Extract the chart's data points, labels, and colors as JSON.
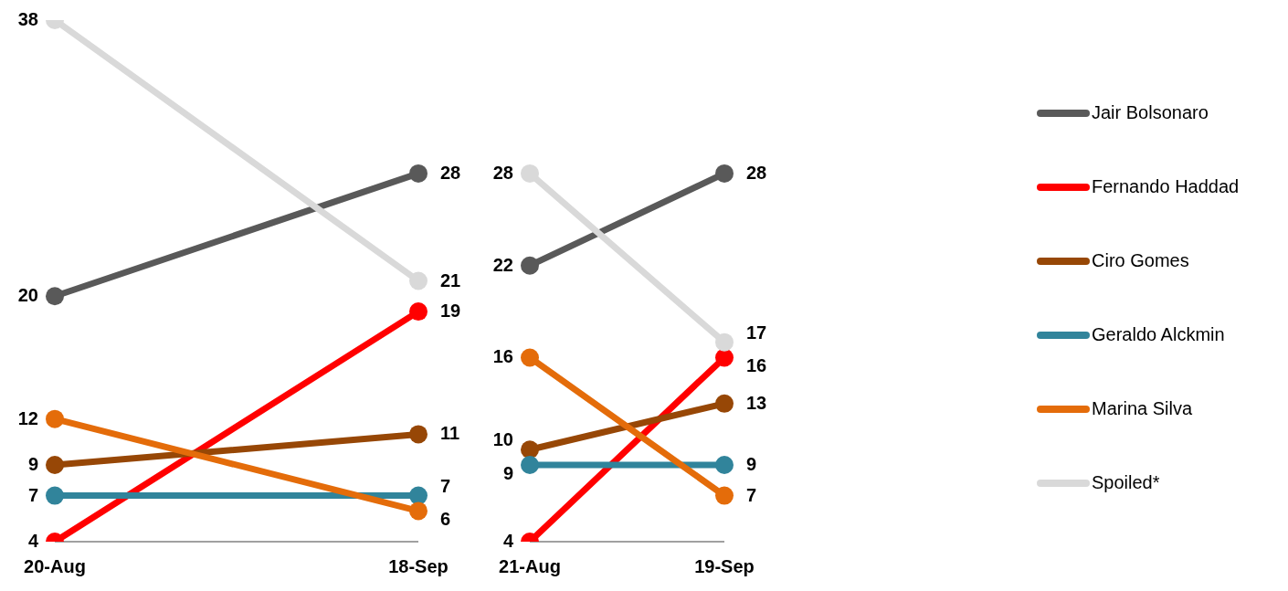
{
  "chart_data": [
    {
      "type": "line",
      "categories": [
        "20-Aug",
        "18-Sep"
      ],
      "tick_labels": "x",
      "data_labels": true,
      "marker": "circle",
      "legend": false,
      "grid": false,
      "series": [
        {
          "color": "#595959",
          "values": [
            20,
            28
          ]
        },
        {
          "color": "#ff0000",
          "values": [
            4,
            19
          ]
        },
        {
          "color": "#974706",
          "values": [
            9,
            11
          ]
        },
        {
          "color": "#31849b",
          "values": [
            7,
            7
          ]
        },
        {
          "color": "#e46c0a",
          "values": [
            12,
            6
          ]
        },
        {
          "color": "#d9d9d9",
          "values": [
            38,
            21
          ]
        }
      ]
    },
    {
      "type": "line",
      "categories": [
        "21-Aug",
        "19-Sep"
      ],
      "tick_labels": "x",
      "data_labels": true,
      "marker": "circle",
      "legend": "right",
      "grid": false,
      "series": [
        {
          "name": "Jair Bolsonaro",
          "color": "#595959",
          "values": [
            22,
            28
          ]
        },
        {
          "name": "Fernando Haddad",
          "color": "#ff0000",
          "values": [
            4,
            16
          ]
        },
        {
          "name": "Ciro Gomes",
          "color": "#974706",
          "values": [
            10,
            13
          ]
        },
        {
          "name": "Geraldo Alckmin",
          "color": "#31849b",
          "values": [
            9,
            9
          ]
        },
        {
          "name": "Marina Silva",
          "color": "#e46c0a",
          "values": [
            16,
            7
          ]
        },
        {
          "name": "Spoiled*",
          "color": "#d9d9d9",
          "values": [
            28,
            17
          ]
        }
      ]
    }
  ]
}
